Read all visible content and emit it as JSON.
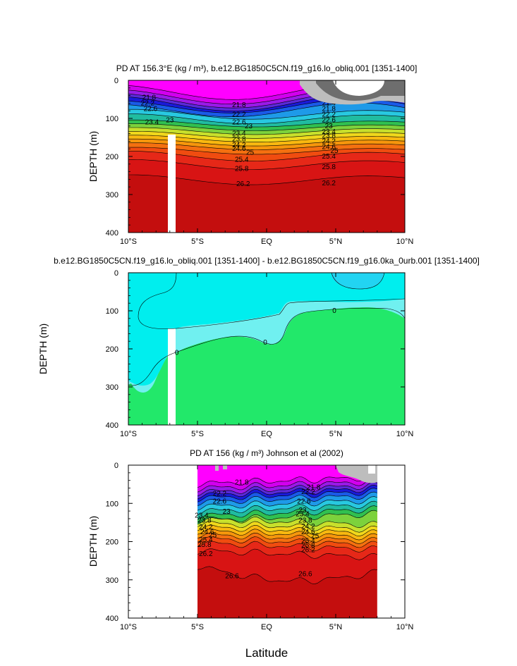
{
  "chart_data": [
    {
      "type": "heatmap",
      "subtype": "filled-contour",
      "title": "PD AT 156.3°E (kg / m³), b.e12.BG1850C5CN.f19_g16.lo_obliq.001 [1351-1400]",
      "ylabel": "DEPTH (m)",
      "xlabel": "",
      "x_ticks": [
        "10°S",
        "5°S",
        "EQ",
        "5°N",
        "10°N"
      ],
      "x_values": [
        -10,
        -5,
        0,
        5,
        10
      ],
      "y_ticks": [
        "0",
        "100",
        "200",
        "300",
        "400"
      ],
      "y_values": [
        0,
        100,
        200,
        300,
        400
      ],
      "xlim": [
        -10,
        10
      ],
      "ylim": [
        400,
        0
      ],
      "contour_levels": [
        21.0,
        21.4,
        21.8,
        22.2,
        22.6,
        23.0,
        23.4,
        23.8,
        24.2,
        24.6,
        25.0,
        25.4,
        25.8,
        26.2,
        26.6,
        27.0
      ],
      "contour_labels": [
        {
          "text": "21.8",
          "lat": -8.5,
          "depth": 45
        },
        {
          "text": "22.2",
          "lat": -8.6,
          "depth": 60
        },
        {
          "text": "22.6",
          "lat": -8.4,
          "depth": 75
        },
        {
          "text": "23",
          "lat": -7.0,
          "depth": 105
        },
        {
          "text": "23.4",
          "lat": -8.3,
          "depth": 110
        },
        {
          "text": "21.8",
          "lat": -2.0,
          "depth": 65
        },
        {
          "text": "22.2",
          "lat": -2.0,
          "depth": 90
        },
        {
          "text": "22.6",
          "lat": -2.0,
          "depth": 110
        },
        {
          "text": "23",
          "lat": -1.3,
          "depth": 120
        },
        {
          "text": "23.4",
          "lat": -2.0,
          "depth": 140
        },
        {
          "text": "23.8",
          "lat": -2.0,
          "depth": 155
        },
        {
          "text": "24.2",
          "lat": -2.0,
          "depth": 170
        },
        {
          "text": "24.6",
          "lat": -2.0,
          "depth": 180
        },
        {
          "text": "25",
          "lat": -1.2,
          "depth": 190
        },
        {
          "text": "25.4",
          "lat": -1.8,
          "depth": 208
        },
        {
          "text": "25.8",
          "lat": -1.8,
          "depth": 232
        },
        {
          "text": "26.2",
          "lat": -1.7,
          "depth": 272
        },
        {
          "text": "21.4",
          "lat": 4.5,
          "depth": 60
        },
        {
          "text": "21.8",
          "lat": 4.5,
          "depth": 75
        },
        {
          "text": "22.2",
          "lat": 4.5,
          "depth": 90
        },
        {
          "text": "22.6",
          "lat": 4.5,
          "depth": 105
        },
        {
          "text": "23",
          "lat": 4.5,
          "depth": 120
        },
        {
          "text": "23.4",
          "lat": 4.5,
          "depth": 135
        },
        {
          "text": "23.8",
          "lat": 4.5,
          "depth": 145
        },
        {
          "text": "24.2",
          "lat": 4.5,
          "depth": 160
        },
        {
          "text": "24.6",
          "lat": 4.5,
          "depth": 175
        },
        {
          "text": "25",
          "lat": 4.9,
          "depth": 185
        },
        {
          "text": "25.4",
          "lat": 4.5,
          "depth": 200
        },
        {
          "text": "25.8",
          "lat": 4.5,
          "depth": 228
        },
        {
          "text": "26.2",
          "lat": 4.5,
          "depth": 270
        }
      ]
    },
    {
      "type": "heatmap",
      "subtype": "filled-contour",
      "title": "b.e12.BG1850C5CN.f19_g16.lo_obliq.001 [1351-1400] - b.e12.BG1850C5CN.f19_g16.0ka_0urb.001 [1351-1400]",
      "ylabel": "DEPTH (m)",
      "xlabel": "",
      "x_ticks": [
        "10°S",
        "5°S",
        "EQ",
        "5°N",
        "10°N"
      ],
      "x_values": [
        -10,
        -5,
        0,
        5,
        10
      ],
      "y_ticks": [
        "0",
        "100",
        "200",
        "300",
        "400"
      ],
      "y_values": [
        0,
        100,
        200,
        300,
        400
      ],
      "xlim": [
        -10,
        10
      ],
      "ylim": [
        400,
        0
      ],
      "contour_labels": [
        {
          "text": "0",
          "lat": 4.9,
          "depth": 100
        },
        {
          "text": "0",
          "lat": -0.1,
          "depth": 183
        },
        {
          "text": "0",
          "lat": -6.5,
          "depth": 210
        }
      ]
    },
    {
      "type": "heatmap",
      "subtype": "filled-contour",
      "title": "PD AT 156 (kg / m³) Johnson et al (2002)",
      "ylabel": "DEPTH (m)",
      "xlabel": "Latitude",
      "x_ticks": [
        "10°S",
        "5°S",
        "EQ",
        "5°N",
        "10°N"
      ],
      "x_values": [
        -10,
        -5,
        0,
        5,
        10
      ],
      "y_ticks": [
        "0",
        "100",
        "200",
        "300",
        "400"
      ],
      "y_values": [
        0,
        100,
        200,
        300,
        400
      ],
      "xlim": [
        -10,
        10
      ],
      "ylim": [
        400,
        0
      ],
      "data_extent_lat": [
        -5,
        8
      ],
      "contour_labels": [
        {
          "text": "21.8",
          "lat": -1.8,
          "depth": 45
        },
        {
          "text": "22.2",
          "lat": -3.4,
          "depth": 75
        },
        {
          "text": "22.6",
          "lat": -3.4,
          "depth": 95
        },
        {
          "text": "23",
          "lat": -2.9,
          "depth": 122
        },
        {
          "text": "23.4",
          "lat": -4.7,
          "depth": 132
        },
        {
          "text": "23.8",
          "lat": -4.5,
          "depth": 145
        },
        {
          "text": "24.2",
          "lat": -4.4,
          "depth": 162
        },
        {
          "text": "24.6",
          "lat": -4.3,
          "depth": 175
        },
        {
          "text": "25",
          "lat": -3.9,
          "depth": 183
        },
        {
          "text": "25.4",
          "lat": -4.4,
          "depth": 195
        },
        {
          "text": "25.8",
          "lat": -4.5,
          "depth": 208
        },
        {
          "text": "26.2",
          "lat": -4.4,
          "depth": 232
        },
        {
          "text": "26.6",
          "lat": -2.5,
          "depth": 290
        },
        {
          "text": "21.8",
          "lat": 3.4,
          "depth": 58
        },
        {
          "text": "22.2",
          "lat": 3.0,
          "depth": 70
        },
        {
          "text": "22.6",
          "lat": 2.7,
          "depth": 95
        },
        {
          "text": "23",
          "lat": 2.6,
          "depth": 118
        },
        {
          "text": "23.4",
          "lat": 2.6,
          "depth": 128
        },
        {
          "text": "23.8",
          "lat": 2.8,
          "depth": 145
        },
        {
          "text": "24.2",
          "lat": 3.0,
          "depth": 160
        },
        {
          "text": "24.6",
          "lat": 3.0,
          "depth": 175
        },
        {
          "text": "25",
          "lat": 3.5,
          "depth": 185
        },
        {
          "text": "25.4",
          "lat": 3.0,
          "depth": 198
        },
        {
          "text": "25.8",
          "lat": 3.0,
          "depth": 210
        },
        {
          "text": "26.2",
          "lat": 3.0,
          "depth": 222
        },
        {
          "text": "26.6",
          "lat": 2.8,
          "depth": 285
        }
      ]
    }
  ]
}
